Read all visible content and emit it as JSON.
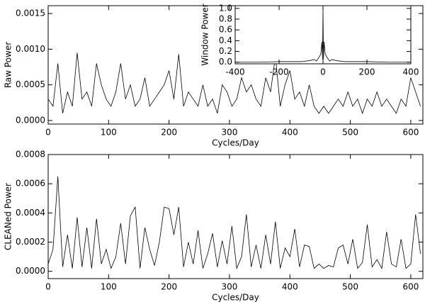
{
  "chart_data": [
    {
      "type": "line",
      "x_label": "Cycles/Day",
      "y_label": "Raw  Power",
      "xlim": [
        0,
        620
      ],
      "ylim": [
        -5e-05,
        0.00161
      ],
      "xticks": [
        0,
        100,
        200,
        300,
        400,
        500,
        600
      ],
      "yticks": [
        {
          "value": 0,
          "label": "0.0000"
        },
        {
          "value": 0.0005,
          "label": "0.0005"
        },
        {
          "value": 0.001,
          "label": "0.0010"
        },
        {
          "value": 0.0015,
          "label": "0.0015"
        }
      ],
      "x": [
        0,
        8,
        16,
        24,
        32,
        40,
        48,
        56,
        64,
        72,
        80,
        88,
        96,
        104,
        112,
        120,
        128,
        136,
        144,
        152,
        160,
        168,
        176,
        184,
        192,
        200,
        208,
        216,
        224,
        232,
        240,
        248,
        256,
        264,
        272,
        280,
        288,
        296,
        304,
        312,
        320,
        328,
        336,
        344,
        352,
        360,
        368,
        376,
        384,
        392,
        400,
        408,
        416,
        424,
        432,
        440,
        448,
        456,
        464,
        472,
        480,
        488,
        496,
        504,
        512,
        520,
        528,
        536,
        544,
        552,
        560,
        568,
        576,
        584,
        592,
        600,
        608,
        616
      ],
      "series": [
        {
          "color": "#000000",
          "values": [
            0.0003,
            0.0002,
            0.0008,
            0.0001,
            0.0004,
            0.0002,
            0.00095,
            0.0003,
            0.0004,
            0.0002,
            0.0008,
            0.0005,
            0.0003,
            0.0002,
            0.0004,
            0.0008,
            0.0003,
            0.0005,
            0.0002,
            0.0003,
            0.0006,
            0.0002,
            0.0003,
            0.0004,
            0.0005,
            0.0007,
            0.0003,
            0.00093,
            0.0002,
            0.0004,
            0.0003,
            0.0002,
            0.0005,
            0.0002,
            0.0003,
            0.0001,
            0.0005,
            0.0004,
            0.0002,
            0.0003,
            0.0006,
            0.0004,
            0.0005,
            0.0003,
            0.0002,
            0.0006,
            0.0004,
            0.0009,
            0.0002,
            0.0005,
            0.0007,
            0.0003,
            0.0004,
            0.0002,
            0.0005,
            0.0002,
            0.0001,
            0.0002,
            0.0001,
            0.0002,
            0.0003,
            0.0002,
            0.0004,
            0.0002,
            0.0003,
            0.0001,
            0.0003,
            0.0002,
            0.0004,
            0.0002,
            0.0003,
            0.0002,
            0.0001,
            0.0003,
            0.0002,
            0.0006,
            0.0004,
            0.0002
          ]
        }
      ]
    },
    {
      "type": "line",
      "y_label": "Window  Power",
      "xlim": [
        -400,
        400
      ],
      "ylim": [
        -0.03,
        1.05
      ],
      "xticks": [
        -400,
        -200,
        0,
        200,
        400
      ],
      "yticks": [
        {
          "value": 0,
          "label": "0.0"
        },
        0.2,
        0.4,
        0.6,
        0.8,
        {
          "value": 1,
          "label": "1.0"
        }
      ],
      "x": [
        -400,
        -300,
        -200,
        -100,
        -60,
        -40,
        -30,
        -20,
        -10,
        -5,
        -2,
        0,
        2,
        5,
        10,
        20,
        30,
        40,
        60,
        100,
        200,
        300,
        400
      ],
      "series": [
        {
          "color": "#000000",
          "values": [
            0,
            0,
            0.01,
            0.01,
            0.03,
            0.05,
            0.02,
            0.08,
            0.15,
            0.38,
            0.05,
            1.0,
            0.05,
            0.38,
            0.15,
            0.08,
            0.02,
            0.05,
            0.03,
            0.01,
            0.01,
            0,
            0
          ]
        }
      ]
    },
    {
      "type": "line",
      "x_label": "Cycles/Day",
      "y_label": "CLEANed  Power",
      "xlim": [
        0,
        620
      ],
      "ylim": [
        -5e-05,
        0.0008
      ],
      "xticks": [
        0,
        100,
        200,
        300,
        400,
        500,
        600
      ],
      "yticks": [
        {
          "value": 0,
          "label": "0.0000"
        },
        {
          "value": 0.0002,
          "label": "0.0002"
        },
        {
          "value": 0.0004,
          "label": "0.0004"
        },
        {
          "value": 0.0006,
          "label": "0.0006"
        },
        {
          "value": 0.0008,
          "label": "0.0008"
        }
      ],
      "x": [
        0,
        8,
        16,
        24,
        32,
        40,
        48,
        56,
        64,
        72,
        80,
        88,
        96,
        104,
        112,
        120,
        128,
        136,
        144,
        152,
        160,
        168,
        176,
        184,
        192,
        200,
        208,
        216,
        224,
        232,
        240,
        248,
        256,
        264,
        272,
        280,
        288,
        296,
        304,
        312,
        320,
        328,
        336,
        344,
        352,
        360,
        368,
        376,
        384,
        392,
        400,
        408,
        416,
        424,
        432,
        440,
        448,
        456,
        464,
        472,
        480,
        488,
        496,
        504,
        512,
        520,
        528,
        536,
        544,
        552,
        560,
        568,
        576,
        584,
        592,
        600,
        608,
        616
      ],
      "series": [
        {
          "color": "#000000",
          "values": [
            5e-05,
            0.00015,
            0.00065,
            3e-05,
            0.00025,
            2e-05,
            0.00037,
            3e-05,
            0.0003,
            2e-05,
            0.00036,
            5e-05,
            0.00015,
            2e-05,
            0.0001,
            0.00033,
            5e-05,
            0.00038,
            0.00044,
            2e-05,
            0.0003,
            0.00015,
            4e-05,
            0.0002,
            0.00044,
            0.00043,
            0.00025,
            0.00044,
            3e-05,
            0.0002,
            5e-05,
            0.00028,
            2e-05,
            0.00012,
            0.00026,
            3e-05,
            0.00021,
            5e-05,
            0.00031,
            2e-05,
            0.0001,
            0.00039,
            3e-05,
            0.00018,
            2e-05,
            0.00025,
            5e-05,
            0.00034,
            2e-05,
            0.00016,
            0.0001,
            0.00029,
            3e-05,
            0.00018,
            0.00017,
            2e-05,
            5e-05,
            2e-05,
            4e-05,
            3e-05,
            0.00016,
            0.00018,
            5e-05,
            0.00022,
            2e-05,
            6e-05,
            0.00032,
            3e-05,
            8e-05,
            2e-05,
            0.00027,
            5e-05,
            3e-05,
            0.00022,
            2e-05,
            5e-05,
            0.00039,
            0.00012
          ]
        }
      ]
    }
  ]
}
